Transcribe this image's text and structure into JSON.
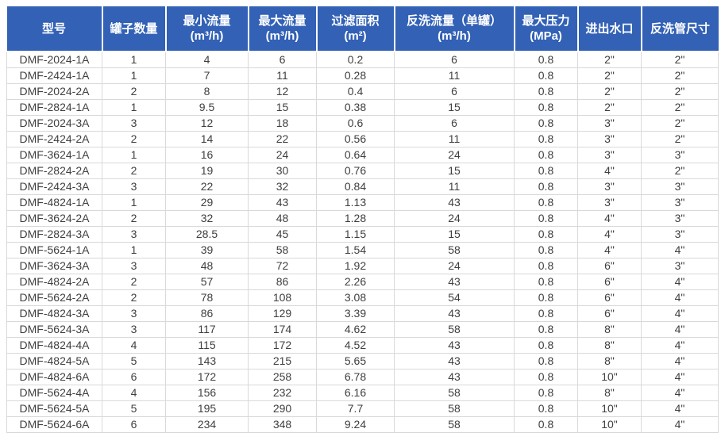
{
  "table": {
    "colors": {
      "header_bg": "#3261b5",
      "header_text": "#ffffff",
      "body_text": "#3f3f3f",
      "grid": "#d9d9d9",
      "page_bg": "#ffffff"
    },
    "columns": [
      {
        "key": "model",
        "label": "型号",
        "unit": ""
      },
      {
        "key": "tank-count",
        "label": "罐子数量",
        "unit": ""
      },
      {
        "key": "min-flow",
        "label": "最小流量",
        "unit": "(m³/h)"
      },
      {
        "key": "max-flow",
        "label": "最大流量",
        "unit": "(m³/h)"
      },
      {
        "key": "filter-area",
        "label": "过滤面积",
        "unit": "(m²)"
      },
      {
        "key": "backwash-flow",
        "label": "反洗流量（单罐）",
        "unit": "(m³/h)"
      },
      {
        "key": "max-pressure",
        "label": "最大压力",
        "unit": "(MPa)"
      },
      {
        "key": "inlet-outlet",
        "label": "进出水口",
        "unit": ""
      },
      {
        "key": "backwash-pipe",
        "label": "反洗管尺寸",
        "unit": ""
      }
    ],
    "rows": [
      [
        "DMF-2024-1A",
        "1",
        "4",
        "6",
        "0.2",
        "6",
        "0.8",
        "2\"",
        "2\""
      ],
      [
        "DMF-2424-1A",
        "1",
        "7",
        "11",
        "0.28",
        "11",
        "0.8",
        "2\"",
        "2\""
      ],
      [
        "DMF-2024-2A",
        "2",
        "8",
        "12",
        "0.4",
        "6",
        "0.8",
        "2\"",
        "2\""
      ],
      [
        "DMF-2824-1A",
        "1",
        "9.5",
        "15",
        "0.38",
        "15",
        "0.8",
        "2\"",
        "2\""
      ],
      [
        "DMF-2024-3A",
        "3",
        "12",
        "18",
        "0.6",
        "6",
        "0.8",
        "3\"",
        "2\""
      ],
      [
        "DMF-2424-2A",
        "2",
        "14",
        "22",
        "0.56",
        "11",
        "0.8",
        "3\"",
        "2\""
      ],
      [
        "DMF-3624-1A",
        "1",
        "16",
        "24",
        "0.64",
        "24",
        "0.8",
        "3\"",
        "3\""
      ],
      [
        "DMF-2824-2A",
        "2",
        "19",
        "30",
        "0.76",
        "15",
        "0.8",
        "4\"",
        "2\""
      ],
      [
        "DMF-2424-3A",
        "3",
        "22",
        "32",
        "0.84",
        "11",
        "0.8",
        "3\"",
        "3\""
      ],
      [
        "DMF-4824-1A",
        "1",
        "29",
        "43",
        "1.13",
        "43",
        "0.8",
        "3\"",
        "3\""
      ],
      [
        "DMF-3624-2A",
        "2",
        "32",
        "48",
        "1.28",
        "24",
        "0.8",
        "4\"",
        "3\""
      ],
      [
        "DMF-2824-3A",
        "3",
        "28.5",
        "45",
        "1.15",
        "15",
        "0.8",
        "4\"",
        "3\""
      ],
      [
        "DMF-5624-1A",
        "1",
        "39",
        "58",
        "1.54",
        "58",
        "0.8",
        "4\"",
        "4\""
      ],
      [
        "DMF-3624-3A",
        "3",
        "48",
        "72",
        "1.92",
        "24",
        "0.8",
        "6\"",
        "3\""
      ],
      [
        "DMF-4824-2A",
        "2",
        "57",
        "86",
        "2.26",
        "43",
        "0.8",
        "6\"",
        "4\""
      ],
      [
        "DMF-5624-2A",
        "2",
        "78",
        "108",
        "3.08",
        "54",
        "0.8",
        "6\"",
        "4\""
      ],
      [
        "DMF-4824-3A",
        "3",
        "86",
        "129",
        "3.39",
        "43",
        "0.8",
        "6\"",
        "4\""
      ],
      [
        "DMF-5624-3A",
        "3",
        "117",
        "174",
        "4.62",
        "58",
        "0.8",
        "8\"",
        "4\""
      ],
      [
        "DMF-4824-4A",
        "4",
        "115",
        "172",
        "4.52",
        "43",
        "0.8",
        "8\"",
        "4\""
      ],
      [
        "DMF-4824-5A",
        "5",
        "143",
        "215",
        "5.65",
        "43",
        "0.8",
        "8\"",
        "4\""
      ],
      [
        "DMF-4824-6A",
        "6",
        "172",
        "258",
        "6.78",
        "43",
        "0.8",
        "10\"",
        "4\""
      ],
      [
        "DMF-5624-4A",
        "4",
        "156",
        "232",
        "6.16",
        "58",
        "0.8",
        "8\"",
        "4\""
      ],
      [
        "DMF-5624-5A",
        "5",
        "195",
        "290",
        "7.7",
        "58",
        "0.8",
        "10\"",
        "4\""
      ],
      [
        "DMF-5624-6A",
        "6",
        "234",
        "348",
        "9.24",
        "58",
        "0.8",
        "10\"",
        "4\""
      ]
    ]
  }
}
